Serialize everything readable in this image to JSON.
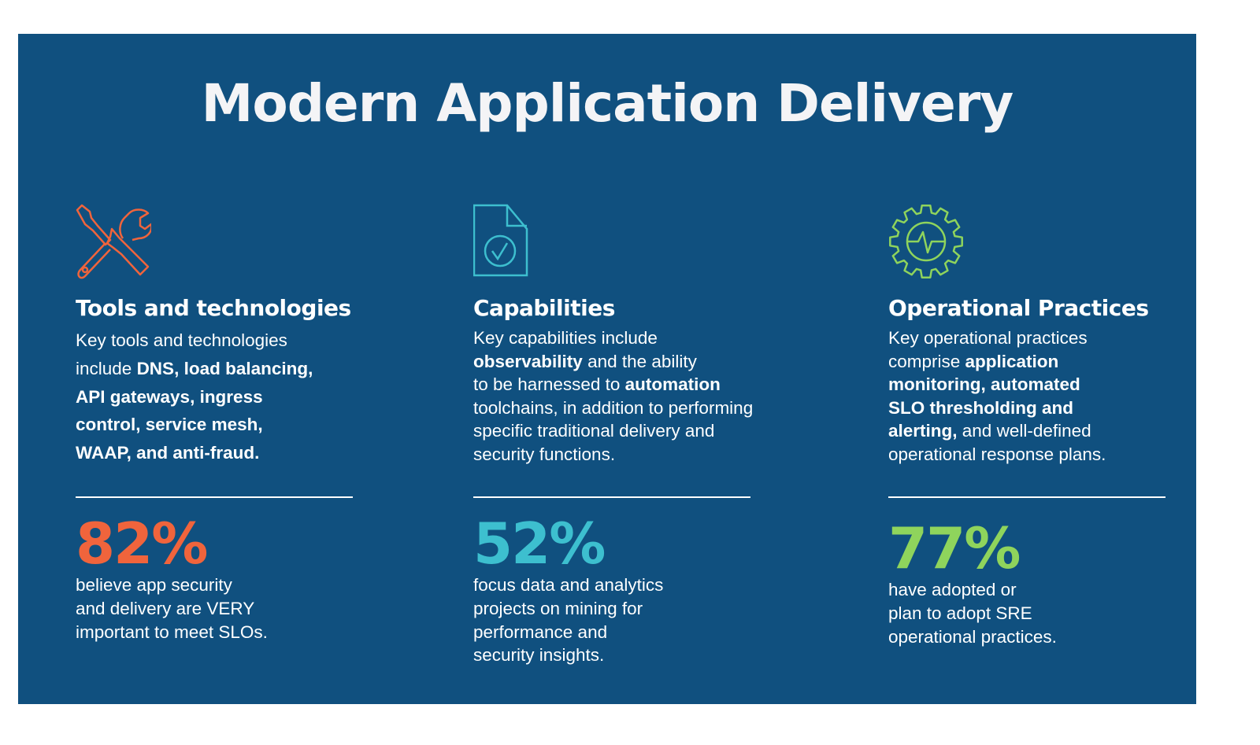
{
  "title": "Modern Application Delivery",
  "colors": {
    "background": "#10507f",
    "orange": "#f0643c",
    "teal": "#3dbfcf",
    "green": "#8fd45c"
  },
  "columns": [
    {
      "icon": "tools-wrench-screwdriver-icon",
      "heading": "Tools and technologies",
      "lines": [
        [
          {
            "t": "Key tools and technologies",
            "b": false
          }
        ],
        [
          {
            "t": "include ",
            "b": false
          },
          {
            "t": "DNS, load balancing,",
            "b": true
          }
        ],
        [
          {
            "t": "API gateways, ingress",
            "b": true
          }
        ],
        [
          {
            "t": "control, service mesh,",
            "b": true
          }
        ],
        [
          {
            "t": "WAAP, and anti-fraud.",
            "b": true
          }
        ]
      ],
      "stat": "82%",
      "note_lines": [
        "believe app security",
        "and delivery are VERY",
        "important to meet SLOs."
      ]
    },
    {
      "icon": "document-check-icon",
      "heading": "Capabilities",
      "lines": [
        [
          {
            "t": "Key capabilities include",
            "b": false
          }
        ],
        [
          {
            "t": "observability",
            "b": true
          },
          {
            "t": " and the ability",
            "b": false
          }
        ],
        [
          {
            "t": "to be harnessed to ",
            "b": false
          },
          {
            "t": "automation",
            "b": true
          }
        ],
        [
          {
            "t": "toolchains, in addition to performing",
            "b": false
          }
        ],
        [
          {
            "t": "specific traditional delivery and",
            "b": false
          }
        ],
        [
          {
            "t": "security functions.",
            "b": false
          }
        ]
      ],
      "stat": "52%",
      "note_lines": [
        "focus data and analytics",
        "projects on mining for",
        "performance and",
        "security insights."
      ]
    },
    {
      "icon": "gear-pulse-icon",
      "heading": "Operational Practices",
      "lines": [
        [
          {
            "t": "Key operational practices",
            "b": false
          }
        ],
        [
          {
            "t": "comprise ",
            "b": false
          },
          {
            "t": "application",
            "b": true
          }
        ],
        [
          {
            "t": "monitoring, automated",
            "b": true
          }
        ],
        [
          {
            "t": "SLO thresholding and",
            "b": true
          }
        ],
        [
          {
            "t": "alerting,",
            "b": true
          },
          {
            "t": " and well-defined",
            "b": false
          }
        ],
        [
          {
            "t": "operational response plans.",
            "b": false
          }
        ]
      ],
      "stat": "77%",
      "note_lines": [
        "have adopted or",
        "plan to adopt SRE",
        "operational practices."
      ]
    }
  ]
}
